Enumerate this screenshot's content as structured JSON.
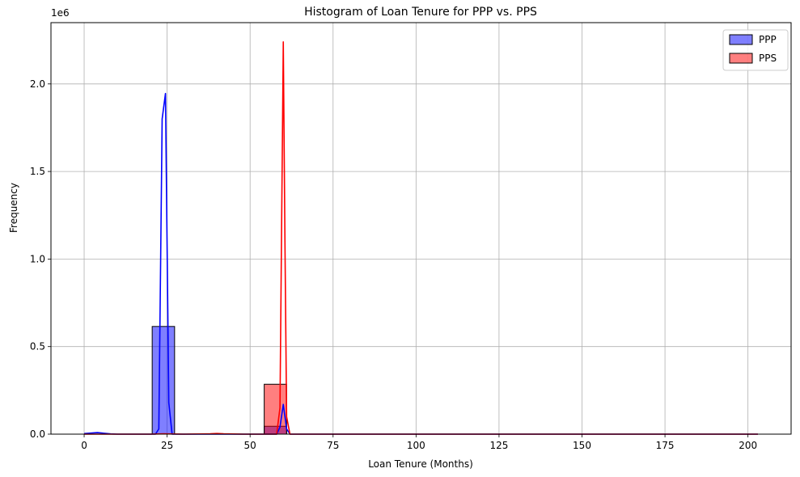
{
  "chart_data": {
    "type": "histogram",
    "title": "Histogram of Loan Tenure for PPP vs. PPS",
    "xlabel": "Loan Tenure (Months)",
    "ylabel": "Frequency",
    "y_scale_label": "1e6",
    "xlim": [
      -10,
      213
    ],
    "ylim": [
      0,
      2350000
    ],
    "xticks": [
      0,
      25,
      50,
      75,
      100,
      125,
      150,
      175,
      200
    ],
    "yticks": [
      0.0,
      0.5,
      1.0,
      1.5,
      2.0
    ],
    "ytick_labels": [
      "0.0",
      "0.5",
      "1.0",
      "1.5",
      "2.0"
    ],
    "grid": true,
    "legend_position": "top-right",
    "series": [
      {
        "name": "PPP",
        "color": "#0000ff",
        "bars": [
          {
            "x0": 20.5,
            "x1": 27.25,
            "count": 615000
          },
          {
            "x0": 54.25,
            "x1": 61.0,
            "count": 45000
          }
        ],
        "kde": [
          [
            0,
            3000
          ],
          [
            2,
            6000
          ],
          [
            4,
            9000
          ],
          [
            6,
            5000
          ],
          [
            8,
            1500
          ],
          [
            10,
            0
          ],
          [
            20,
            0
          ],
          [
            21.5,
            0
          ],
          [
            22.5,
            30000
          ],
          [
            23.5,
            1800000
          ],
          [
            24.5,
            1945000
          ],
          [
            25.5,
            180000
          ],
          [
            26.5,
            0
          ],
          [
            50,
            0
          ],
          [
            58,
            0
          ],
          [
            59,
            40000
          ],
          [
            60,
            170000
          ],
          [
            61,
            30000
          ],
          [
            62,
            0
          ],
          [
            100,
            0
          ],
          [
            203,
            0
          ]
        ]
      },
      {
        "name": "PPS",
        "color": "#ff0000",
        "bars": [
          {
            "x0": 54.25,
            "x1": 61.0,
            "count": 285000
          }
        ],
        "kde": [
          [
            0,
            0
          ],
          [
            20,
            0
          ],
          [
            24,
            2000
          ],
          [
            30,
            0
          ],
          [
            38,
            2000
          ],
          [
            40,
            4000
          ],
          [
            42,
            2000
          ],
          [
            48,
            0
          ],
          [
            58,
            0
          ],
          [
            59,
            150000
          ],
          [
            59.5,
            1200000
          ],
          [
            60,
            2240000
          ],
          [
            60.5,
            1100000
          ],
          [
            61,
            100000
          ],
          [
            62,
            0
          ],
          [
            100,
            0
          ],
          [
            203,
            0
          ]
        ]
      }
    ]
  }
}
